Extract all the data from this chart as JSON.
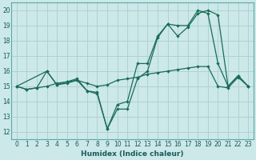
{
  "xlabel": "Humidex (Indice chaleur)",
  "xlim": [
    -0.5,
    23.5
  ],
  "ylim": [
    11.5,
    20.5
  ],
  "yticks": [
    12,
    13,
    14,
    15,
    16,
    17,
    18,
    19,
    20
  ],
  "xticks": [
    0,
    1,
    2,
    3,
    4,
    5,
    6,
    7,
    8,
    9,
    10,
    11,
    12,
    13,
    14,
    15,
    16,
    17,
    18,
    19,
    20,
    21,
    22,
    23
  ],
  "bg_color": "#cce8e8",
  "grid_color": "#aacfcf",
  "line_color": "#1a6b5a",
  "line1_x": [
    0,
    1,
    2,
    3,
    4,
    5,
    6,
    7,
    8,
    9,
    10,
    11,
    12,
    13,
    14,
    15,
    16,
    17,
    18,
    19,
    20,
    21,
    22,
    23
  ],
  "line1_y": [
    15.0,
    14.8,
    14.9,
    15.0,
    15.2,
    15.3,
    15.4,
    15.2,
    15.0,
    15.1,
    15.4,
    15.5,
    15.6,
    15.8,
    15.9,
    16.0,
    16.1,
    16.2,
    16.3,
    16.3,
    15.0,
    14.9,
    15.6,
    15.0
  ],
  "line2_x": [
    0,
    1,
    2,
    3,
    4,
    5,
    6,
    7,
    8,
    9,
    10,
    11,
    12,
    13,
    14,
    15,
    16,
    17,
    18,
    19,
    20,
    21,
    22,
    23
  ],
  "line2_y": [
    15.0,
    14.8,
    14.9,
    16.0,
    15.1,
    15.2,
    15.4,
    14.7,
    14.6,
    12.2,
    13.8,
    14.0,
    16.5,
    16.5,
    18.3,
    19.1,
    18.3,
    18.9,
    19.8,
    20.0,
    19.7,
    15.0,
    15.7,
    15.0
  ],
  "line3_x": [
    0,
    3,
    4,
    5,
    6,
    7,
    8,
    9,
    10,
    11,
    12,
    13,
    14,
    15,
    16,
    17,
    18,
    19,
    20,
    21,
    22,
    23
  ],
  "line3_y": [
    15.0,
    16.0,
    15.1,
    15.3,
    15.5,
    14.7,
    14.5,
    12.2,
    13.5,
    13.5,
    15.5,
    16.0,
    18.2,
    19.1,
    19.0,
    19.0,
    20.0,
    19.8,
    16.5,
    15.0,
    15.7,
    15.0
  ]
}
